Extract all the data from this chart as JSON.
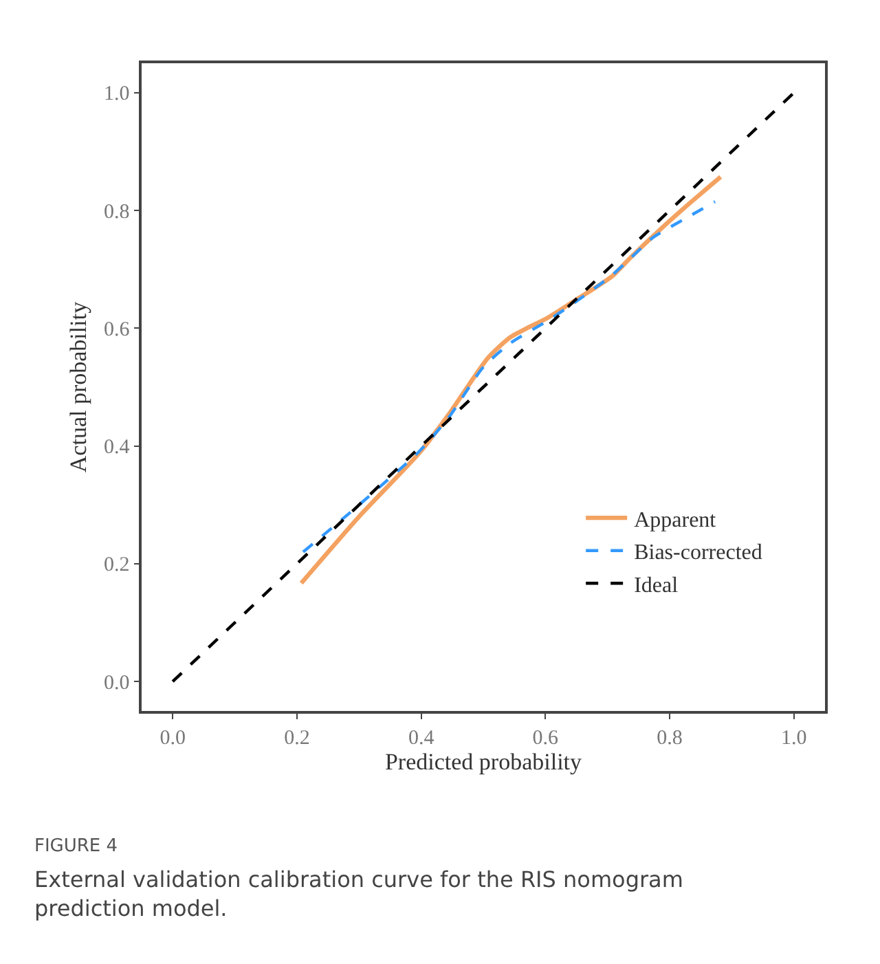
{
  "chart_data": {
    "type": "line",
    "xlabel": "Predicted probability",
    "ylabel": "Actual probability",
    "annotations": [
      "FIGURE 4",
      "External validation calibration curve for the RIS nomogram prediction model."
    ],
    "xlim": [
      -0.05,
      1.05
    ],
    "ylim": [
      -0.05,
      1.05
    ],
    "xticks": [
      {
        "value": 0,
        "label": "0.0"
      },
      0.2,
      0.4,
      0.6,
      0.8,
      {
        "value": 1,
        "label": "1.0"
      }
    ],
    "yticks": [
      {
        "value": 0,
        "label": "0.0"
      },
      0.2,
      0.4,
      0.6,
      0.8,
      {
        "value": 1,
        "label": "1.0"
      }
    ],
    "legend": "bottom right",
    "marker": "none",
    "series": [
      {
        "name": "Apparent",
        "color": "#f4a261",
        "line_style": "solid",
        "x": [
          0.207,
          0.3,
          0.396,
          0.444,
          0.507,
          0.544,
          0.604,
          0.649,
          0.707,
          0.738,
          0.782,
          0.833,
          0.882
        ],
        "values": [
          0.167,
          0.28,
          0.387,
          0.453,
          0.549,
          0.585,
          0.618,
          0.648,
          0.688,
          0.721,
          0.765,
          0.813,
          0.857
        ]
      },
      {
        "name": "Bias-corrected",
        "color": "#3399ff",
        "line_style": "dashed",
        "x": [
          0.21,
          0.3,
          0.396,
          0.444,
          0.5,
          0.544,
          0.604,
          0.649,
          0.707,
          0.738,
          0.773,
          0.833,
          0.873
        ],
        "values": [
          0.22,
          0.3,
          0.39,
          0.448,
          0.534,
          0.575,
          0.613,
          0.645,
          0.69,
          0.72,
          0.754,
          0.791,
          0.815
        ]
      },
      {
        "name": "Ideal",
        "color": "#000000",
        "line_style": "dashed",
        "x": [
          0,
          1
        ],
        "values": [
          0,
          1
        ]
      }
    ]
  }
}
